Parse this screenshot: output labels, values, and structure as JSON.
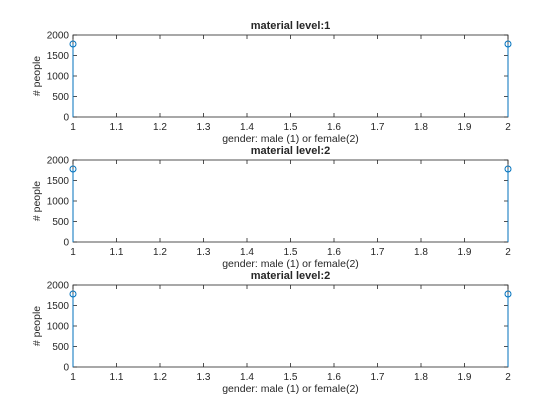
{
  "colors": {
    "marker": "#0072BD",
    "axes": "#262626",
    "background": "#ffffff"
  },
  "chart_data": [
    {
      "type": "stem",
      "title": "material level:1",
      "xlabel": "gender: male (1) or female(2)",
      "ylabel": "# people",
      "xlim": [
        1,
        2
      ],
      "ylim": [
        0,
        2000
      ],
      "xticks": [
        "1",
        "1.1",
        "1.2",
        "1.3",
        "1.4",
        "1.5",
        "1.6",
        "1.7",
        "1.8",
        "1.9",
        "2"
      ],
      "yticks": [
        "0",
        "500",
        "1000",
        "1500",
        "2000"
      ],
      "x": [
        1,
        2
      ],
      "y": [
        1780,
        1780
      ]
    },
    {
      "type": "stem",
      "title": "material level:2",
      "xlabel": "gender: male (1) or female(2)",
      "ylabel": "# people",
      "xlim": [
        1,
        2
      ],
      "ylim": [
        0,
        2000
      ],
      "xticks": [
        "1",
        "1.1",
        "1.2",
        "1.3",
        "1.4",
        "1.5",
        "1.6",
        "1.7",
        "1.8",
        "1.9",
        "2"
      ],
      "yticks": [
        "0",
        "500",
        "1000",
        "1500",
        "2000"
      ],
      "x": [
        1,
        2
      ],
      "y": [
        1780,
        1780
      ]
    },
    {
      "type": "stem",
      "title": "material level:2",
      "xlabel": "gender: male (1) or female(2)",
      "ylabel": "# people",
      "xlim": [
        1,
        2
      ],
      "ylim": [
        0,
        2000
      ],
      "xticks": [
        "1",
        "1.1",
        "1.2",
        "1.3",
        "1.4",
        "1.5",
        "1.6",
        "1.7",
        "1.8",
        "1.9",
        "2"
      ],
      "yticks": [
        "0",
        "500",
        "1000",
        "1500",
        "2000"
      ],
      "x": [
        1,
        2
      ],
      "y": [
        1780,
        1780
      ]
    }
  ]
}
